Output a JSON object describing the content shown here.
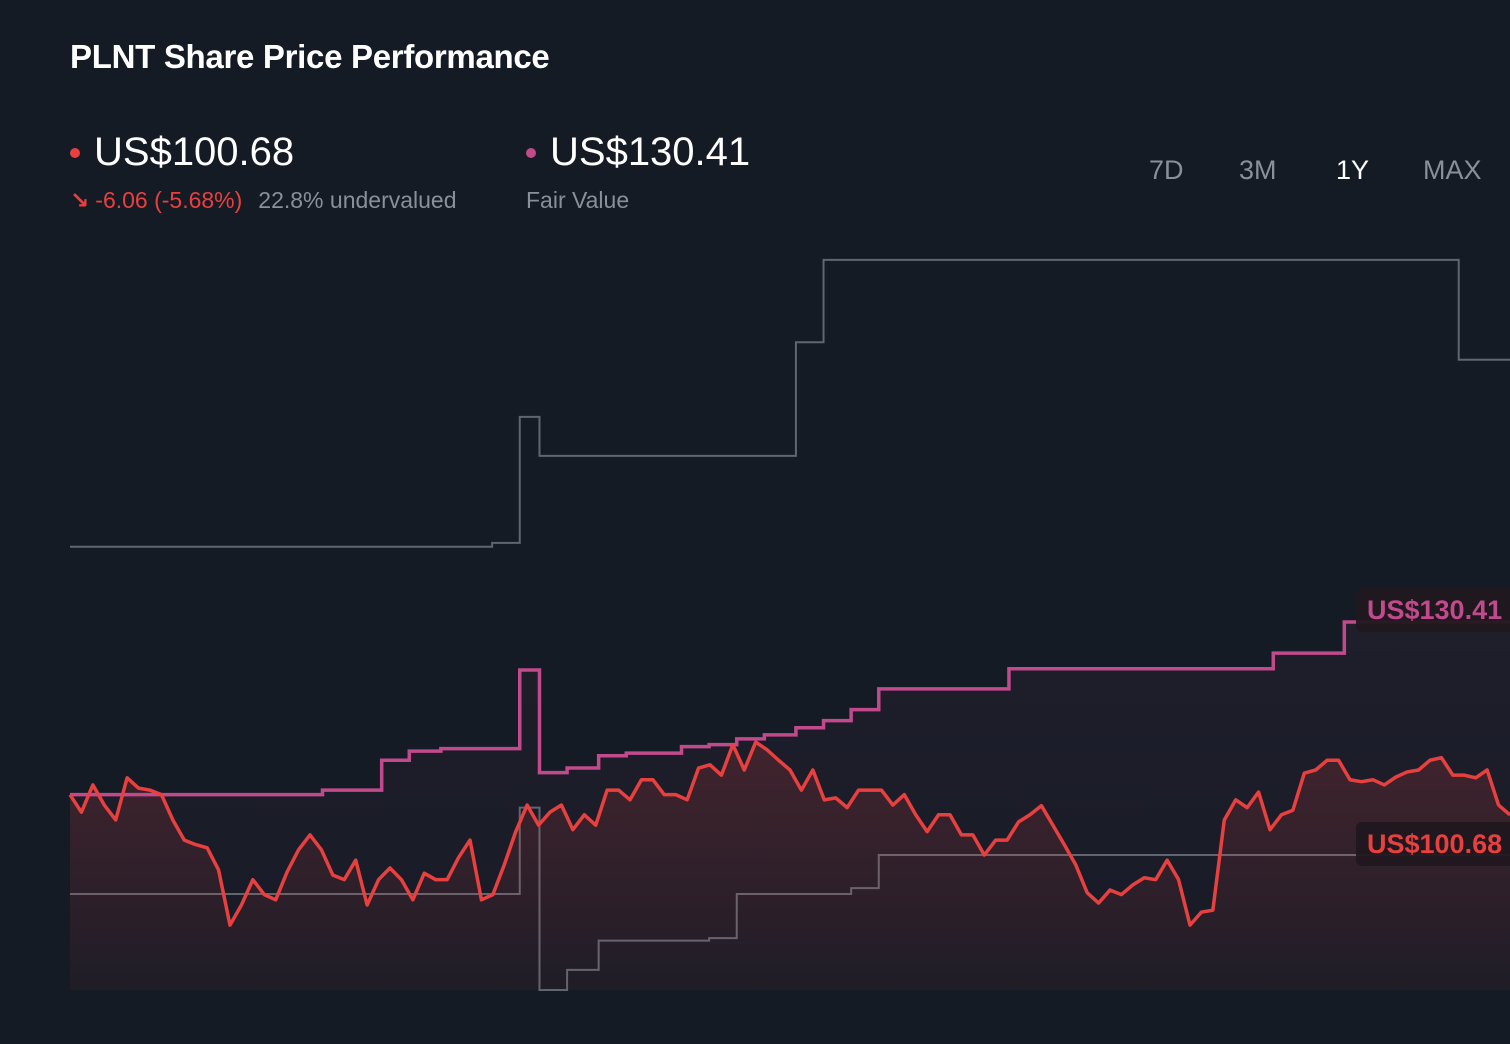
{
  "header": {
    "title": "PLNT Share Price Performance"
  },
  "price": {
    "value": "US$100.68",
    "change": "-6.06 (-5.68%)",
    "change_icon": "arrow-down-right",
    "valuation": "22.8% undervalued"
  },
  "fair_value": {
    "value": "US$130.41",
    "label": "Fair Value"
  },
  "timeframes": [
    {
      "label": "7D",
      "active": false
    },
    {
      "label": "3M",
      "active": false
    },
    {
      "label": "1Y",
      "active": true
    },
    {
      "label": "MAX",
      "active": false
    }
  ],
  "colors": {
    "background": "#151b25",
    "price": "#e8403f",
    "fair_value": "#c04a8c",
    "other": "#5f6670",
    "muted": "#8a8f98"
  },
  "chart_data": {
    "type": "line",
    "title": "PLNT Share Price Performance",
    "period": "1Y",
    "xlim_days": [
      0,
      365
    ],
    "ylim": [
      73.7,
      190.8
    ],
    "grid": false,
    "legend": "none",
    "end_labels": {
      "fair_value": "US$130.41",
      "price": "US$100.68"
    },
    "price_series": {
      "name": "US$100.68",
      "spacing": "even",
      "values": [
        103.8,
        101.1,
        105.3,
        102.2,
        99.9,
        106.4,
        104.8,
        104.5,
        103.8,
        99.9,
        96.8,
        96.1,
        95.6,
        92.2,
        83.7,
        86.8,
        90.7,
        88.4,
        87.6,
        91.9,
        95.3,
        97.6,
        95.3,
        91.4,
        90.7,
        93.7,
        86.8,
        90.7,
        92.5,
        90.7,
        87.6,
        91.7,
        90.7,
        90.7,
        94.1,
        96.8,
        87.6,
        88.4,
        93.0,
        98.1,
        102.2,
        99.1,
        101.1,
        102.2,
        98.4,
        100.7,
        99.1,
        104.5,
        104.5,
        103.0,
        106.1,
        106.1,
        103.8,
        103.8,
        103.0,
        107.9,
        108.4,
        106.8,
        111.5,
        107.6,
        111.9,
        110.7,
        109.1,
        107.6,
        104.5,
        107.6,
        103.0,
        103.3,
        101.8,
        104.5,
        104.5,
        104.5,
        102.2,
        103.8,
        100.7,
        98.1,
        100.7,
        100.7,
        97.6,
        97.6,
        94.5,
        96.8,
        96.8,
        99.6,
        100.7,
        102.1,
        99.1,
        96.1,
        93.0,
        88.7,
        87.1,
        89.1,
        88.4,
        89.9,
        91.0,
        90.7,
        93.7,
        90.7,
        83.7,
        85.7,
        86.0,
        99.9,
        103.0,
        101.8,
        104.2,
        98.4,
        100.7,
        101.4,
        107.1,
        107.6,
        109.1,
        109.1,
        106.1,
        105.8,
        106.1,
        105.3,
        106.5,
        107.3,
        107.6,
        109.1,
        109.5,
        106.8,
        106.8,
        106.4,
        107.6,
        102.2,
        100.68
      ]
    },
    "fair_value_series": {
      "name": "Fair Value",
      "step": "after",
      "points": [
        [
          0,
          103.8
        ],
        [
          64,
          104.5
        ],
        [
          79,
          109.1
        ],
        [
          86,
          110.5
        ],
        [
          94,
          110.9
        ],
        [
          114,
          123.0
        ],
        [
          119,
          107.2
        ],
        [
          126,
          107.9
        ],
        [
          134,
          109.8
        ],
        [
          141,
          110.2
        ],
        [
          155,
          111.2
        ],
        [
          162,
          111.5
        ],
        [
          169,
          112.4
        ],
        [
          176,
          113.0
        ],
        [
          184,
          114.1
        ],
        [
          191,
          115.2
        ],
        [
          198,
          116.9
        ],
        [
          205,
          120.1
        ],
        [
          238,
          123.2
        ],
        [
          305,
          125.6
        ],
        [
          323,
          130.41
        ]
      ]
    },
    "other_series": [
      {
        "step": "after",
        "points": [
          [
            0,
            142.0
          ],
          [
            107,
            142.6
          ],
          [
            114,
            162.0
          ],
          [
            119,
            156.0
          ],
          [
            184,
            173.5
          ],
          [
            191,
            186.2
          ],
          [
            352,
            170.8
          ]
        ]
      },
      {
        "step": "after",
        "points": [
          [
            0,
            88.5
          ],
          [
            114,
            101.8
          ],
          [
            119,
            73.7
          ],
          [
            126,
            76.8
          ],
          [
            134,
            81.3
          ],
          [
            162,
            81.7
          ],
          [
            169,
            88.5
          ],
          [
            198,
            89.4
          ],
          [
            205,
            94.5
          ]
        ]
      }
    ]
  }
}
